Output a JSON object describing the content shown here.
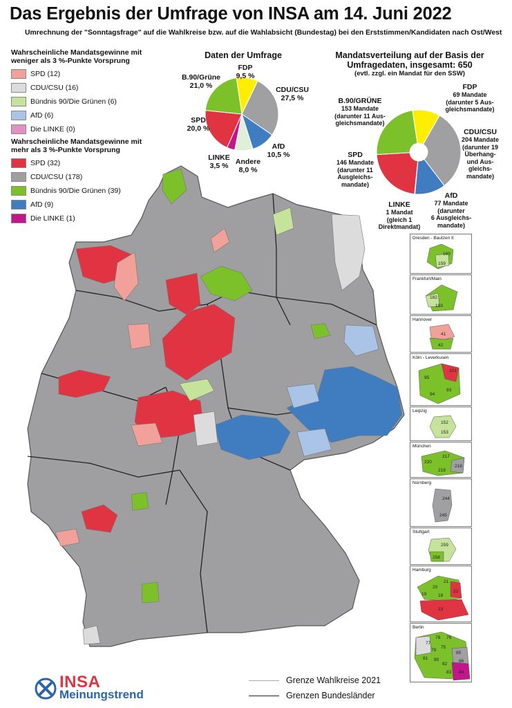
{
  "title": "Das Ergebnis der Umfrage von INSA am 14. Juni 2022",
  "subtitle": "Umrechnung der \"Sonntagsfrage\" auf die Wahlkreise bzw. auf die Wahlabsicht (Bundestag) bei den Erststimmen/Kandidaten nach Ost/West",
  "legend": {
    "weak_heading": "Wahrscheinliche Mandatsgewinne mit weniger als 3 %-Punkte Vorsprung",
    "weak_items": [
      {
        "label": "SPD (12)",
        "color": "#f2a09a"
      },
      {
        "label": "CDU/CSU (16)",
        "color": "#dcdcdc"
      },
      {
        "label": "Bündnis 90/Die Grünen (6)",
        "color": "#c5e39a"
      },
      {
        "label": "AfD (6)",
        "color": "#a9c4e6"
      },
      {
        "label": "Die LINKE (0)",
        "color": "#e58fc3"
      }
    ],
    "strong_heading": "Wahrscheinliche Mandatsgewinne mit mehr als 3 %-Punkte Vorsprung",
    "strong_items": [
      {
        "label": "SPD (32)",
        "color": "#e03442"
      },
      {
        "label": "CDU/CSU (178)",
        "color": "#9f9fa1"
      },
      {
        "label": "Bündnis 90/Die Grünen (39)",
        "color": "#7cc02a"
      },
      {
        "label": "AfD (9)",
        "color": "#3f7cc0"
      },
      {
        "label": "Die LINKE (1)",
        "color": "#c2168a"
      }
    ]
  },
  "poll_chart": {
    "title": "Daten der Umfrage",
    "labels": {
      "fdp": "FDP\n9,5 %",
      "cdu": "CDU/CSU\n27,5 %",
      "afd": "AfD\n10,5 %",
      "andere": "Andere\n8,0 %",
      "linke": "LINKE\n3,5 %",
      "spd": "SPD\n20,0 %",
      "gruene": "B.90/Grüne\n21,0 %"
    }
  },
  "seat_chart": {
    "title": "Mandatsverteilung auf der Basis der Umfragedaten, insgesamt: 650",
    "note": "(evtl. zzgl. ein Mandat für den SSW)",
    "labels": {
      "fdp_name": "FDP",
      "fdp_detail": "69 Mandate\n(darunter 5 Aus-\ngleichsmandate)",
      "cdu_name": "CDU/CSU",
      "cdu_detail": "204 Mandate\n(darunter 19\nÜberhang-\nund Aus-\ngleichs-\nmandate)",
      "afd_name": "AfD",
      "afd_detail": "77 Mandate\n(darunter\n6 Ausgleichs-\nmandate)",
      "linke_name": "LINKE",
      "linke_detail": "1 Mandat\n(gleich 1\nDirektmandat)",
      "spd_name": "SPD",
      "spd_detail": "146 Mandate\n(darunter 11\nAusgleichs-\nmandate)",
      "gruene_name": "B.90/GRÜNE",
      "gruene_detail": "153 Mandate\n(darunter 11 Aus-\ngleichsmandate)"
    }
  },
  "chart_data": [
    {
      "type": "pie",
      "title": "Daten der Umfrage",
      "categories": [
        "FDP",
        "CDU/CSU",
        "AfD",
        "Andere",
        "LINKE",
        "SPD",
        "B.90/Grüne"
      ],
      "values": [
        9.5,
        27.5,
        10.5,
        8.0,
        3.5,
        20.0,
        21.0
      ],
      "colors": [
        "#ffee00",
        "#a0a0a2",
        "#3f7cc0",
        "#dff0d8",
        "#c2168a",
        "#e03442",
        "#7cc02a"
      ]
    },
    {
      "type": "pie",
      "title": "Mandatsverteilung auf der Basis der Umfragedaten, insgesamt: 650",
      "categories": [
        "FDP",
        "CDU/CSU",
        "AfD",
        "LINKE",
        "SPD",
        "B.90/GRÜNE"
      ],
      "values": [
        69,
        204,
        77,
        1,
        146,
        153
      ],
      "colors": [
        "#ffee00",
        "#a0a0a2",
        "#3f7cc0",
        "#c2168a",
        "#e03442",
        "#7cc02a"
      ]
    }
  ],
  "insets": [
    {
      "name": "Dresden - Bautzen II",
      "numbers": [
        "160",
        "159"
      ]
    },
    {
      "name": "Frankfurt/Main",
      "numbers": [
        "182",
        "183"
      ]
    },
    {
      "name": "Hannover",
      "numbers": [
        "41",
        "42"
      ]
    },
    {
      "name": "Köln - Leverkusen",
      "numbers": [
        "101",
        "95",
        "93",
        "94"
      ]
    },
    {
      "name": "Leipzig",
      "numbers": [
        "152",
        "153"
      ]
    },
    {
      "name": "München",
      "numbers": [
        "217",
        "220",
        "218",
        "219"
      ]
    },
    {
      "name": "Nürnberg",
      "numbers": [
        "244",
        "245"
      ]
    },
    {
      "name": "Stuttgart",
      "numbers": [
        "259",
        "258"
      ]
    },
    {
      "name": "Hamburg",
      "numbers": [
        "21",
        "20",
        "22",
        "19",
        "18",
        "23"
      ]
    },
    {
      "name": "Berlin",
      "numbers": [
        "78",
        "76",
        "77",
        "79",
        "75",
        "81",
        "80",
        "82",
        "85",
        "86",
        "84",
        "83"
      ]
    }
  ],
  "bottom_legend": {
    "wahlkreise": "Grenze Wahlkreise 2021",
    "bundeslaender": "Grenzen Bundesländer"
  },
  "logo": {
    "brand": "INSA",
    "sub": "Meinungstrend"
  },
  "colors": {
    "spd": "#e03442",
    "spd_light": "#f2a09a",
    "cdu": "#9f9fa1",
    "cdu_light": "#dcdcdc",
    "gruene": "#7cc02a",
    "gruene_light": "#c5e39a",
    "afd": "#3f7cc0",
    "afd_light": "#a9c4e6",
    "linke": "#c2168a",
    "fdp": "#ffee00",
    "andere": "#dff0d8"
  }
}
